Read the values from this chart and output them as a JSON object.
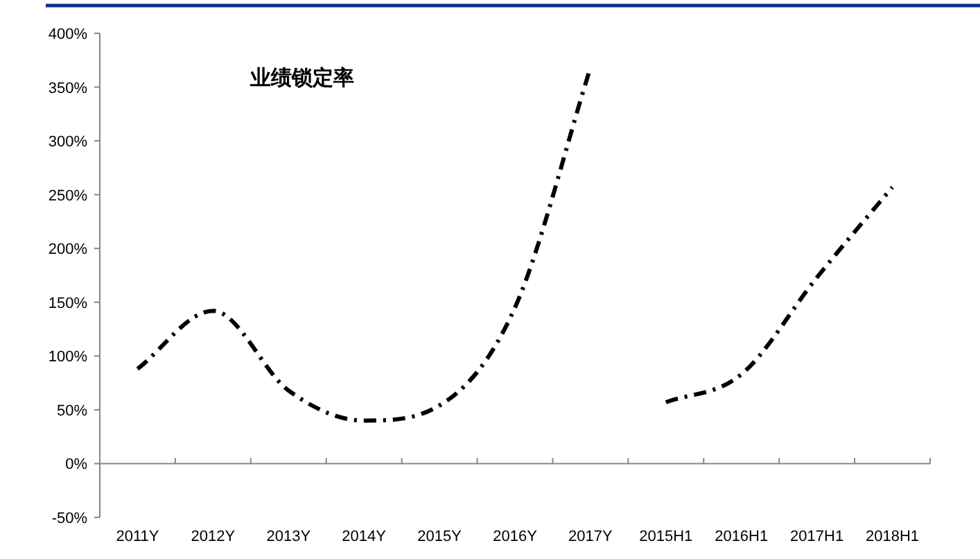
{
  "chart_data": {
    "type": "line",
    "title": "业绩锁定率",
    "categories": [
      "2011Y",
      "2012Y",
      "2013Y",
      "2014Y",
      "2015Y",
      "2016Y",
      "2017Y",
      "2015H1",
      "2016H1",
      "2017H1",
      "2018H1"
    ],
    "series": [
      {
        "color": "#000000",
        "values": [
          88,
          142,
          68,
          40,
          54,
          145,
          368,
          null,
          null,
          null,
          null
        ]
      },
      {
        "color": "#000000",
        "values": [
          null,
          null,
          null,
          null,
          null,
          null,
          null,
          57,
          83,
          173,
          257
        ]
      }
    ],
    "ylim": [
      -50,
      400
    ],
    "yticks": [
      {
        "value": -50,
        "label": "-50%"
      },
      {
        "value": 0,
        "label": "0%"
      },
      {
        "value": 50,
        "label": "50%"
      },
      {
        "value": 100,
        "label": "100%"
      },
      {
        "value": 150,
        "label": "150%"
      },
      {
        "value": 200,
        "label": "200%"
      },
      {
        "value": 250,
        "label": "250%"
      },
      {
        "value": 300,
        "label": "300%"
      },
      {
        "value": 350,
        "label": "350%"
      },
      {
        "value": 400,
        "label": "400%"
      }
    ],
    "line_style": "dashed",
    "marker": "none"
  }
}
